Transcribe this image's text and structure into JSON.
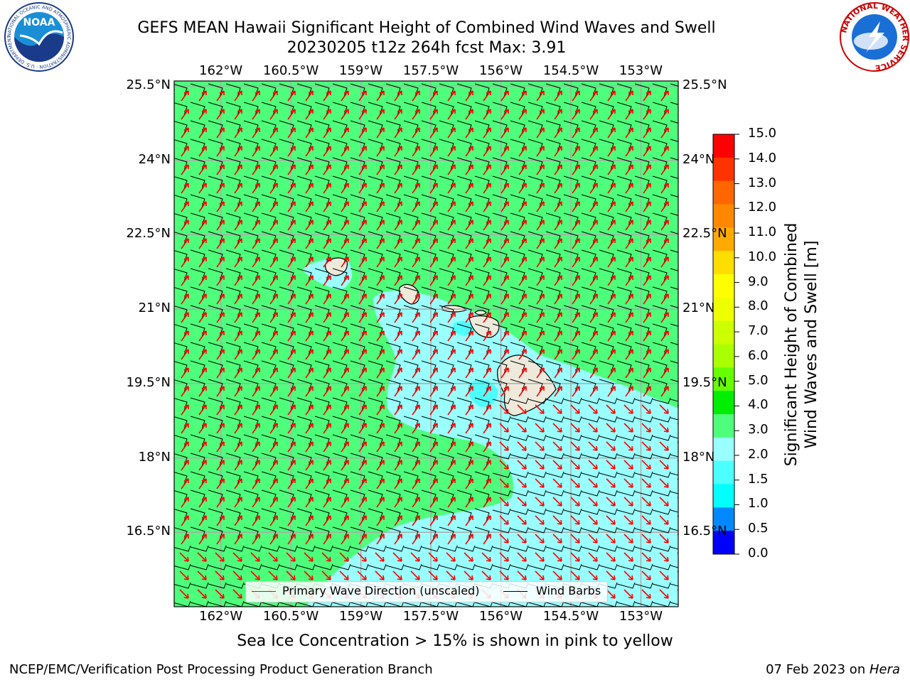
{
  "header": {
    "title_line1": "GEFS MEAN Hawaii Significant Height of Combined Wind Waves and Swell",
    "title_line2": "20230205 t12z 264h fcst   Max: 3.91"
  },
  "logos": {
    "noaa_text": "NOAA",
    "noaa_ring_text": "NATIONAL OCEANIC AND ATMOSPHERIC ADMINISTRATION · U.S. DEPARTMENT OF COMMERCE",
    "nws_ring_text": "NATIONAL WEATHER SERVICE"
  },
  "map": {
    "lon_ticks": [
      "162°W",
      "160.5°W",
      "159°W",
      "157.5°W",
      "156°W",
      "154.5°W",
      "153°W"
    ],
    "lat_ticks": [
      "25.5°N",
      "24°N",
      "22.5°N",
      "21°N",
      "19.5°N",
      "18°N",
      "16.5°N"
    ],
    "lon_range": [
      -163,
      -152.2
    ],
    "lat_range": [
      15.0,
      25.6
    ],
    "colors": {
      "green_band": "#4dff7a",
      "cyan_band": "#99ffff",
      "mid_cyan": "#4dffff",
      "land": "#eeeadb",
      "wave_arrow": "#ff0000",
      "barb": "#000000"
    }
  },
  "legend": {
    "wave_label": "Primary Wave Direction (unscaled)",
    "barb_label": "Wind Barbs"
  },
  "colorbar": {
    "title_line1": "Significant Height of Combined",
    "title_line2": "Wind Waves and Swell [m]",
    "labels": [
      "15.0",
      "14.0",
      "13.0",
      "12.0",
      "11.0",
      "10.0",
      "9.0",
      "8.0",
      "7.0",
      "6.0",
      "5.0",
      "4.0",
      "3.0",
      "2.0",
      "1.5",
      "1.0",
      "0.5",
      "0.0"
    ],
    "colors": [
      "#ff0000",
      "#ff3300",
      "#ff6600",
      "#ff8800",
      "#ffaa00",
      "#ffdd00",
      "#ffff00",
      "#eeff00",
      "#ccff00",
      "#aaff00",
      "#66ff00",
      "#00ee00",
      "#4dff7a",
      "#99ffff",
      "#4dffff",
      "#00ffff",
      "#0088ff",
      "#0000ff"
    ]
  },
  "notes": {
    "ice": "Sea Ice Concentration > 15% is shown in pink to yellow",
    "producer": "NCEP/EMC/Verification Post Processing Product Generation Branch",
    "date": "07 Feb 2023 on ",
    "machine": "Hera"
  }
}
